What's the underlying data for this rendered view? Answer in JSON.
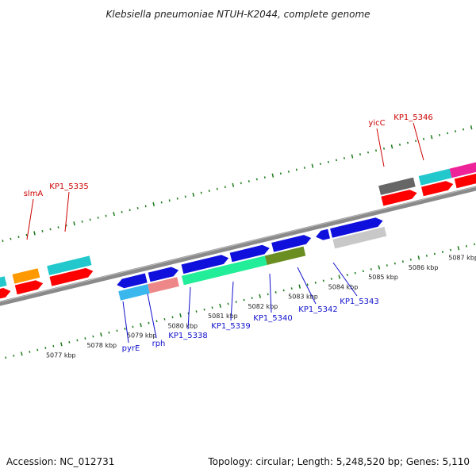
{
  "title": "Klebsiella pneumoniae NTUH-K2044, complete genome",
  "accession": "Accession: NC_012731",
  "topology": "Topology: circular; Length: 5,248,520 bp; Genes: 5,110",
  "colors": {
    "backbone": "#8a8a8a",
    "tick": "#1a7a1a",
    "label_red": "#cc0000",
    "label_blue": "#1010cc",
    "cyan": "#22c8cc",
    "orange": "#ff9900",
    "red": "#ff0000",
    "blue": "#1010dd",
    "light_blue": "#3ab8ee",
    "salmon": "#ee8888",
    "green": "#22ee99",
    "olive": "#6b8e23",
    "light_gray": "#c8c8c8",
    "dark_gray": "#666666",
    "magenta": "#ee2299"
  },
  "kbp_labels": [
    "5077 kbp",
    "5078 kbp",
    "5079 kbp",
    "5080 kbp",
    "5081 kbp",
    "5082 kbp",
    "5083 kbp",
    "5084 kbp",
    "5085 kbp",
    "5086 kbp",
    "5087 kbp"
  ],
  "top_labels": [
    "slmA",
    "KP1_5335",
    "yicC",
    "KP1_5346"
  ],
  "bottom_labels": [
    "pyrE",
    "rph",
    "KP1_5338",
    "KP1_5339",
    "KP1_5340",
    "KP1_5342",
    "KP1_5343"
  ]
}
